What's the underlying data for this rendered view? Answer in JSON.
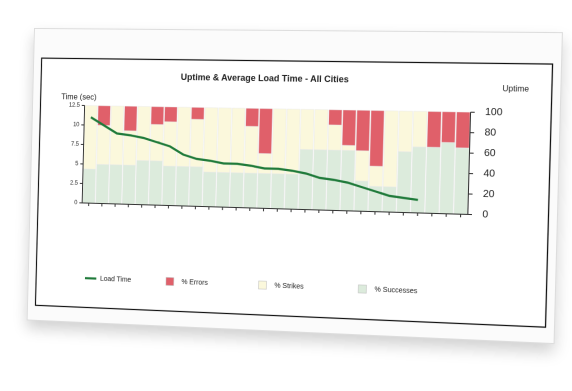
{
  "chart_data": {
    "type": "bar",
    "title": "Uptime & Average Load Time - All Cities",
    "y_label": "Time (sec)",
    "y2_label": "Uptime",
    "categories": [
      null,
      null,
      null,
      null,
      null,
      null,
      null,
      null,
      null,
      null,
      null,
      null,
      null,
      null,
      null,
      null,
      null,
      null,
      null,
      null,
      null,
      null,
      null,
      null,
      null,
      null,
      null,
      null
    ],
    "stacked": true,
    "series": [
      {
        "name": "% Successes",
        "color": "#dcebdc",
        "axis": "y2",
        "values": [
          35,
          40,
          40,
          40,
          45,
          45,
          40,
          40,
          40,
          35,
          35,
          35,
          35,
          35,
          35,
          35,
          60,
          60,
          60,
          60,
          30,
          25,
          25,
          60,
          65,
          65,
          70,
          65
        ]
      },
      {
        "name": "% Strikes",
        "color": "#fbf8dc",
        "axis": "y2",
        "values": [
          65,
          40,
          60,
          35,
          55,
          37,
          45,
          60,
          48,
          65,
          65,
          65,
          47,
          20,
          65,
          65,
          40,
          40,
          25,
          5,
          30,
          20,
          75,
          40,
          35,
          0,
          0,
          0
        ]
      },
      {
        "name": "% Errors",
        "color": "#e0606a",
        "axis": "y2",
        "values": [
          0,
          20,
          0,
          25,
          0,
          18,
          15,
          0,
          12,
          0,
          0,
          0,
          18,
          45,
          0,
          0,
          0,
          0,
          15,
          35,
          40,
          55,
          0,
          0,
          0,
          35,
          30,
          35
        ]
      },
      {
        "name": "Load Time",
        "color": "#1f7a3a",
        "type": "line",
        "axis": "y",
        "values": [
          11,
          10,
          9,
          8.8,
          8.5,
          8,
          7.5,
          6.5,
          6,
          5.8,
          5.5,
          5.5,
          5.3,
          5,
          5,
          4.8,
          4.5,
          4,
          3.8,
          3.5,
          3,
          2.5,
          2,
          1.8,
          1.6,
          null,
          null,
          null
        ]
      }
    ],
    "ylim": [
      0,
      12.5
    ],
    "yticks": [
      0,
      2.5,
      5,
      7.5,
      10,
      12.5
    ],
    "y2lim": [
      0,
      100
    ],
    "y2ticks": [
      0,
      20,
      40,
      60,
      80,
      100
    ],
    "legend": "bottom"
  }
}
